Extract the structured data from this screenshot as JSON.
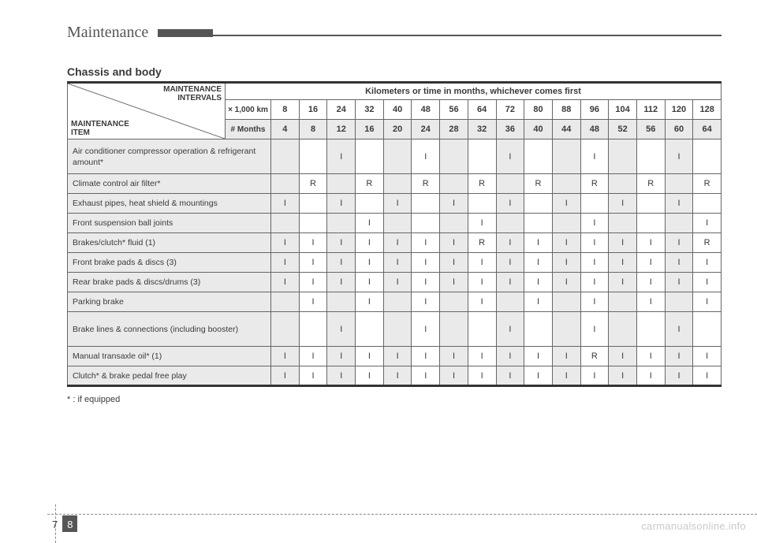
{
  "header": {
    "title": "Maintenance"
  },
  "section_title": "Chassis and body",
  "corner": {
    "top": "MAINTENANCE\nINTERVALS",
    "bottom": "MAINTENANCE\nITEM"
  },
  "header_row": "Kilometers or time in months, whichever comes first",
  "unit_labels": {
    "km": "× 1,000 km",
    "months": "# Months"
  },
  "km_values": [
    "8",
    "16",
    "24",
    "32",
    "40",
    "48",
    "56",
    "64",
    "72",
    "80",
    "88",
    "96",
    "104",
    "112",
    "120",
    "128"
  ],
  "month_values": [
    "4",
    "8",
    "12",
    "16",
    "20",
    "24",
    "28",
    "32",
    "36",
    "40",
    "44",
    "48",
    "52",
    "56",
    "60",
    "64"
  ],
  "rows": [
    {
      "item": "Air conditioner compressor operation & refrigerant amount*",
      "tall": true,
      "vals": [
        "",
        "",
        "I",
        "",
        "",
        "I",
        "",
        "",
        "I",
        "",
        "",
        "I",
        "",
        "",
        "I",
        ""
      ]
    },
    {
      "item": "Climate control air filter*",
      "vals": [
        "",
        "R",
        "",
        "R",
        "",
        "R",
        "",
        "R",
        "",
        "R",
        "",
        "R",
        "",
        "R",
        "",
        "R"
      ]
    },
    {
      "item": "Exhaust pipes, heat shield & mountings",
      "vals": [
        "I",
        "",
        "I",
        "",
        "I",
        "",
        "I",
        "",
        "I",
        "",
        "I",
        "",
        "I",
        "",
        "I",
        ""
      ]
    },
    {
      "item": "Front suspension ball joints",
      "vals": [
        "",
        "",
        "",
        "I",
        "",
        "",
        "",
        "I",
        "",
        "",
        "",
        "I",
        "",
        "",
        "",
        "I"
      ]
    },
    {
      "item": "Brakes/clutch* fluid               (1)",
      "vals": [
        "I",
        "I",
        "I",
        "I",
        "I",
        "I",
        "I",
        "R",
        "I",
        "I",
        "I",
        "I",
        "I",
        "I",
        "I",
        "R"
      ]
    },
    {
      "item": "Front brake pads & discs          (3)",
      "vals": [
        "I",
        "I",
        "I",
        "I",
        "I",
        "I",
        "I",
        "I",
        "I",
        "I",
        "I",
        "I",
        "I",
        "I",
        "I",
        "I"
      ]
    },
    {
      "item": "Rear brake pads & discs/drums  (3)",
      "vals": [
        "I",
        "I",
        "I",
        "I",
        "I",
        "I",
        "I",
        "I",
        "I",
        "I",
        "I",
        "I",
        "I",
        "I",
        "I",
        "I"
      ]
    },
    {
      "item": "Parking brake",
      "vals": [
        "",
        "I",
        "",
        "I",
        "",
        "I",
        "",
        "I",
        "",
        "I",
        "",
        "I",
        "",
        "I",
        "",
        "I"
      ]
    },
    {
      "item": "Brake lines & connections (including booster)",
      "tall": true,
      "vals": [
        "",
        "",
        "I",
        "",
        "",
        "I",
        "",
        "",
        "I",
        "",
        "",
        "I",
        "",
        "",
        "I",
        ""
      ]
    },
    {
      "item": "Manual transaxle oil*              (1)",
      "vals": [
        "I",
        "I",
        "I",
        "I",
        "I",
        "I",
        "I",
        "I",
        "I",
        "I",
        "I",
        "R",
        "I",
        "I",
        "I",
        "I"
      ]
    },
    {
      "item": "Clutch* & brake pedal free play",
      "vals": [
        "I",
        "I",
        "I",
        "I",
        "I",
        "I",
        "I",
        "I",
        "I",
        "I",
        "I",
        "I",
        "I",
        "I",
        "I",
        "I"
      ]
    }
  ],
  "footnote": "* : if equipped",
  "page": {
    "chapter": "7",
    "number": "8"
  },
  "watermark": "carmanualsonline.info",
  "style": {
    "shade_color": "#eaeaea",
    "border_color": "#666666",
    "heavy_border_color": "#333333",
    "text_color": "#3a3a3a",
    "font_size_body": 11
  }
}
